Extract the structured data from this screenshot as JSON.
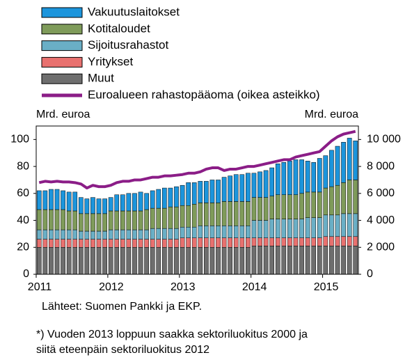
{
  "chart_data": {
    "type": "bar",
    "stacked": true,
    "categories": [
      "2011",
      null,
      null,
      null,
      null,
      null,
      null,
      null,
      null,
      null,
      null,
      null,
      "2012",
      null,
      null,
      null,
      null,
      null,
      null,
      null,
      null,
      null,
      null,
      null,
      "2013",
      null,
      null,
      null,
      null,
      null,
      null,
      null,
      null,
      null,
      null,
      null,
      "2014",
      null,
      null,
      null,
      null,
      null,
      null,
      null,
      null,
      null,
      null,
      null,
      "2015",
      null,
      null,
      null,
      null,
      null
    ],
    "y_label": "Mrd. euroa",
    "y2_label": "Mrd. euroa",
    "ylim": [
      0,
      110
    ],
    "yticks": [
      0,
      20,
      40,
      60,
      80,
      100
    ],
    "y2lim": [
      0,
      11000
    ],
    "y2ticks": [
      0,
      {
        "value": 2000,
        "label": "2 000"
      },
      {
        "value": 4000,
        "label": "4 000"
      },
      {
        "value": 6000,
        "label": "6 000"
      },
      {
        "value": 8000,
        "label": "8 000"
      },
      {
        "value": 10000,
        "label": "10 000"
      }
    ],
    "series": [
      {
        "name": "Vakuutuslaitokset",
        "color": "#1c95dc",
        "values": [
          14,
          14,
          15,
          15,
          14,
          14,
          14,
          12,
          11,
          12,
          11,
          11,
          10,
          12,
          12,
          13,
          13,
          14,
          12,
          13,
          14,
          15,
          14,
          15,
          15,
          17,
          16,
          16,
          16,
          17,
          17,
          18,
          19,
          20,
          20,
          21,
          18,
          19,
          20,
          21,
          23,
          24,
          25,
          26,
          25,
          23,
          22,
          25,
          24,
          27,
          29,
          30,
          31,
          29
        ]
      },
      {
        "name": "Kotitaloudet",
        "color": "#7f9b5a",
        "values": [
          15,
          15,
          15,
          15,
          15,
          14,
          14,
          13,
          13,
          13,
          13,
          13,
          14,
          14,
          14,
          14,
          14,
          14,
          15,
          15,
          15,
          15,
          16,
          16,
          16,
          16,
          17,
          17,
          17,
          17,
          17,
          18,
          18,
          18,
          18,
          18,
          17,
          17,
          17,
          17,
          18,
          18,
          18,
          18,
          19,
          19,
          19,
          19,
          20,
          21,
          22,
          23,
          25,
          25
        ]
      },
      {
        "name": "Sijoitusrahastot",
        "color": "#6aafc6",
        "values": [
          7,
          7,
          7,
          7,
          7,
          7,
          7,
          6,
          6,
          6,
          6,
          6,
          7,
          7,
          7,
          7,
          7,
          7,
          7,
          8,
          8,
          8,
          8,
          8,
          8,
          8,
          8,
          9,
          9,
          9,
          9,
          9,
          9,
          9,
          9,
          9,
          13,
          13,
          13,
          14,
          14,
          14,
          14,
          14,
          14,
          15,
          15,
          15,
          16,
          16,
          16,
          17,
          17,
          17
        ]
      },
      {
        "name": "Yritykset",
        "color": "#e8716f",
        "values": [
          6,
          6,
          6,
          6,
          6,
          6,
          6,
          6,
          6,
          6,
          6,
          6,
          6,
          6,
          6,
          6,
          6,
          6,
          6,
          6,
          6,
          6,
          6,
          6,
          7,
          7,
          7,
          7,
          7,
          7,
          7,
          7,
          7,
          7,
          7,
          7,
          6,
          6,
          6,
          6,
          6,
          6,
          6,
          6,
          6,
          6,
          6,
          6,
          7,
          7,
          7,
          7,
          7,
          7
        ]
      },
      {
        "name": "Muut",
        "color": "#6e6e6e",
        "values": [
          20,
          20,
          20,
          20,
          20,
          20,
          20,
          20,
          20,
          20,
          20,
          20,
          20,
          20,
          20,
          20,
          20,
          20,
          20,
          20,
          20,
          20,
          20,
          20,
          20,
          20,
          20,
          20,
          20,
          20,
          20,
          20,
          20,
          20,
          20,
          20,
          21,
          21,
          21,
          21,
          21,
          21,
          21,
          21,
          21,
          21,
          21,
          21,
          21,
          21,
          21,
          21,
          21,
          21
        ]
      },
      {
        "name": "Euroalueen rahastopääoma (oikea asteikko)",
        "color": "#8b1d87",
        "type": "line",
        "axis": "y2",
        "values": [
          6800,
          6900,
          6850,
          6900,
          6850,
          6850,
          6800,
          6700,
          6400,
          6600,
          6500,
          6500,
          6600,
          6800,
          6900,
          6900,
          7000,
          7000,
          7100,
          7200,
          7200,
          7300,
          7300,
          7350,
          7400,
          7500,
          7500,
          7600,
          7800,
          7900,
          7900,
          7700,
          7800,
          7800,
          7900,
          8000,
          8000,
          8100,
          8200,
          8300,
          8400,
          8500,
          8500,
          8700,
          8800,
          8900,
          9000,
          9100,
          9500,
          9900,
          10200,
          10400,
          10500,
          10600
        ]
      }
    ],
    "source": "Lähteet: Suomen Pankki ja EKP.",
    "notes": [
      "*) Vuoden 2013 loppuun saakka sektoriluokitus 2000 ja",
      "siitä eteenpäin sektoriluokitus 2012"
    ]
  }
}
